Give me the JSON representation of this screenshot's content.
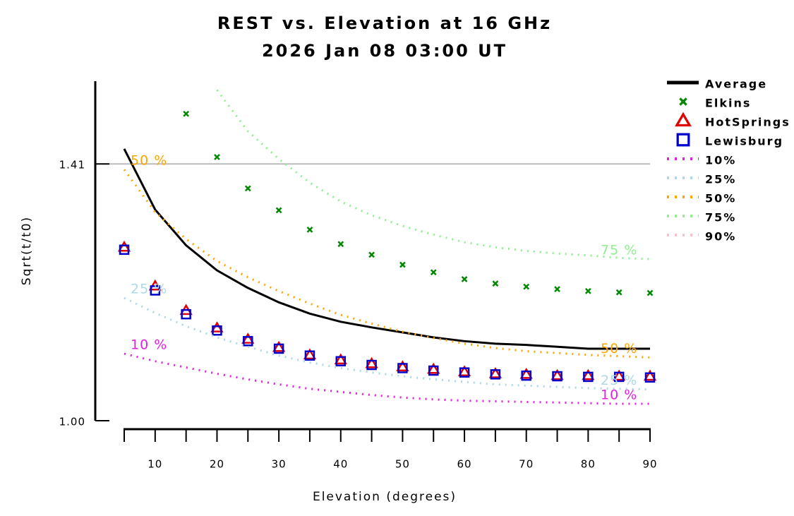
{
  "chart_data": {
    "type": "line",
    "title": "REST vs. Elevation at 16 GHz",
    "subtitle": "2026 Jan 08 03:00 UT",
    "x_label": "Elevation (degrees)",
    "y_label": "Sqrt(t/t0)",
    "x": [
      5,
      10,
      15,
      20,
      25,
      30,
      35,
      40,
      45,
      50,
      55,
      60,
      65,
      70,
      75,
      80,
      85,
      90
    ],
    "xlim": [
      5,
      90
    ],
    "xticks": [
      10,
      20,
      30,
      40,
      50,
      60,
      70,
      80,
      90
    ],
    "xminorticks": [
      5,
      15,
      25,
      35,
      45,
      55,
      65,
      75,
      85
    ],
    "ylim": [
      1.0,
      1.55
    ],
    "yticks": [
      {
        "value": 1.0,
        "label": "1.00"
      },
      1.41
    ],
    "reference_line": {
      "value": 1.41,
      "color": "#bbbbbb"
    },
    "legend": "right",
    "series": [
      {
        "name": "Average",
        "color": "#000000",
        "style": "line",
        "values": [
          1.434,
          1.337,
          1.28,
          1.24,
          1.212,
          1.189,
          1.171,
          1.158,
          1.149,
          1.141,
          1.133,
          1.127,
          1.123,
          1.121,
          1.118,
          1.115,
          1.115,
          1.115
        ]
      },
      {
        "name": "Elkins",
        "color": "#008800",
        "style": "x",
        "values": [
          null,
          null,
          1.49,
          1.421,
          1.371,
          1.336,
          1.305,
          1.282,
          1.265,
          1.249,
          1.237,
          1.226,
          1.219,
          1.214,
          1.21,
          1.207,
          1.205,
          1.204
        ]
      },
      {
        "name": "HotSprings",
        "color": "#e00000",
        "style": "triangle",
        "values": [
          1.277,
          1.215,
          1.176,
          1.148,
          1.13,
          1.117,
          1.105,
          1.097,
          1.091,
          1.086,
          1.082,
          1.078,
          1.075,
          1.074,
          1.072,
          1.072,
          1.071,
          1.071
        ]
      },
      {
        "name": "Lewisburg",
        "color": "#0000cc",
        "style": "square",
        "values": [
          1.273,
          1.208,
          1.17,
          1.144,
          1.127,
          1.115,
          1.104,
          1.095,
          1.089,
          1.084,
          1.08,
          1.077,
          1.074,
          1.072,
          1.071,
          1.07,
          1.07,
          1.069
        ]
      },
      {
        "name": "10%",
        "color": "#e020e0",
        "style": "dotted",
        "label": "10 %",
        "label_ends": [
          "start",
          "end"
        ],
        "values": [
          1.107,
          1.095,
          1.085,
          1.075,
          1.066,
          1.058,
          1.051,
          1.046,
          1.041,
          1.037,
          1.034,
          1.032,
          1.031,
          1.03,
          1.029,
          1.028,
          1.027,
          1.027
        ]
      },
      {
        "name": "25%",
        "color": "#add8e6",
        "style": "dotted",
        "label": "25 %",
        "label_ends": [
          "start",
          "end"
        ],
        "values": [
          1.196,
          1.172,
          1.151,
          1.133,
          1.118,
          1.104,
          1.093,
          1.084,
          1.077,
          1.071,
          1.066,
          1.062,
          1.058,
          1.056,
          1.054,
          1.052,
          1.051,
          1.05
        ]
      },
      {
        "name": "50%",
        "color": "#ffa500",
        "style": "dotted",
        "label": "50 %",
        "label_ends": [
          "start",
          "end"
        ],
        "values": [
          1.401,
          1.333,
          1.29,
          1.255,
          1.229,
          1.207,
          1.187,
          1.169,
          1.155,
          1.142,
          1.132,
          1.123,
          1.116,
          1.111,
          1.108,
          1.105,
          1.103,
          1.101
        ]
      },
      {
        "name": "75%",
        "color": "#90ee90",
        "style": "dotted",
        "label": "75 %",
        "label_ends": [
          "end"
        ],
        "values": [
          null,
          null,
          null,
          1.528,
          1.462,
          1.418,
          1.38,
          1.35,
          1.328,
          1.311,
          1.297,
          1.285,
          1.277,
          1.271,
          1.267,
          1.264,
          1.26,
          1.258
        ]
      },
      {
        "name": "90%",
        "color": "#ffc0cb",
        "style": "dotted",
        "values": [
          null,
          null,
          null,
          null,
          null,
          null,
          null,
          null,
          null,
          null,
          null,
          null,
          null,
          null,
          null,
          null,
          null,
          null
        ]
      }
    ]
  }
}
